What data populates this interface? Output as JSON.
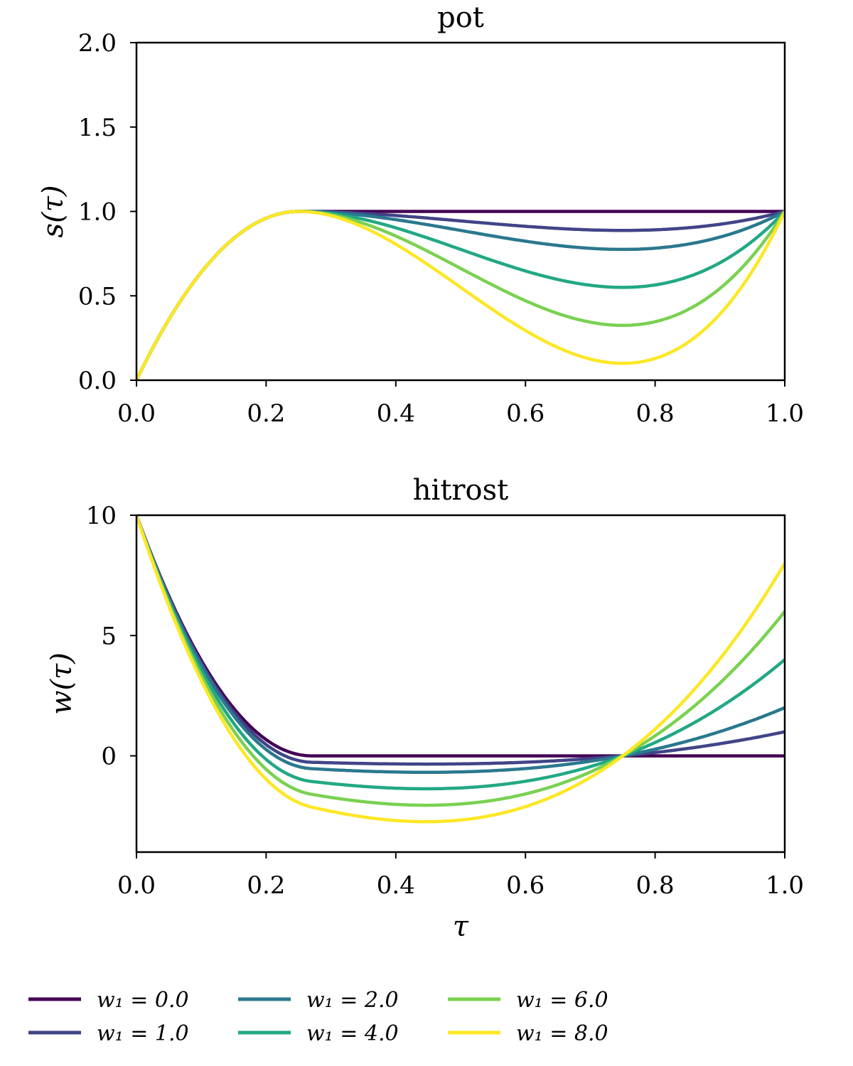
{
  "chart_data": [
    {
      "type": "line",
      "title": "pot",
      "xlabel": "",
      "ylabel": "s(τ)",
      "xlim": [
        0,
        1
      ],
      "ylim": [
        0,
        2
      ],
      "xticks": [
        "0.0",
        "0.2",
        "0.4",
        "0.6",
        "0.8",
        "1.0"
      ],
      "yticks": [
        "0.0",
        "0.5",
        "1.0",
        "1.5",
        "2.0"
      ],
      "grid": false,
      "series_note": "s(τ) peaks at 1.0 at τ≈0.25; minimum near τ≈0.75",
      "series": [
        {
          "name": "w₁ = 0.0",
          "min_value": 1.0
        },
        {
          "name": "w₁ = 1.0",
          "min_value": 0.89
        },
        {
          "name": "w₁ = 2.0",
          "min_value": 0.78
        },
        {
          "name": "w₁ = 4.0",
          "min_value": 0.555
        },
        {
          "name": "w₁ = 6.0",
          "min_value": 0.32
        },
        {
          "name": "w₁ = 8.0",
          "min_value": 0.08
        }
      ]
    },
    {
      "type": "line",
      "title": "hitrost",
      "xlabel": "τ",
      "ylabel": "w(τ)",
      "xlim": [
        0,
        1
      ],
      "ylim": [
        -4,
        10
      ],
      "xticks": [
        "0.0",
        "0.2",
        "0.4",
        "0.6",
        "0.8",
        "1.0"
      ],
      "yticks": [
        "0",
        "5",
        "10"
      ],
      "yticks_values": [
        0,
        5,
        10
      ],
      "grid": false,
      "series": [
        {
          "name": "w₁ = 0.0",
          "end_value": 0.0,
          "min_value": 0.0
        },
        {
          "name": "w₁ = 1.0",
          "end_value": 1.0,
          "min_value": -0.35
        },
        {
          "name": "w₁ = 2.0",
          "end_value": 2.0,
          "min_value": -0.65
        },
        {
          "name": "w₁ = 4.0",
          "end_value": 4.0,
          "min_value": -1.35
        },
        {
          "name": "w₁ = 6.0",
          "end_value": 6.0,
          "min_value": -2.0
        },
        {
          "name": "w₁ = 8.0",
          "end_value": 8.0,
          "min_value": -2.7
        }
      ]
    }
  ],
  "legend": {
    "placement": "bottom",
    "items": [
      {
        "label": "w₁ = 0.0",
        "w1": 0,
        "color": "#440154"
      },
      {
        "label": "w₁ = 1.0",
        "w1": 1,
        "color": "#414487"
      },
      {
        "label": "w₁ = 2.0",
        "w1": 2,
        "color": "#2a788e"
      },
      {
        "label": "w₁ = 4.0",
        "w1": 4,
        "color": "#22a884"
      },
      {
        "label": "w₁ = 6.0",
        "w1": 6,
        "color": "#7ad151"
      },
      {
        "label": "w₁ = 8.0",
        "w1": 8,
        "color": "#fde725"
      }
    ]
  }
}
